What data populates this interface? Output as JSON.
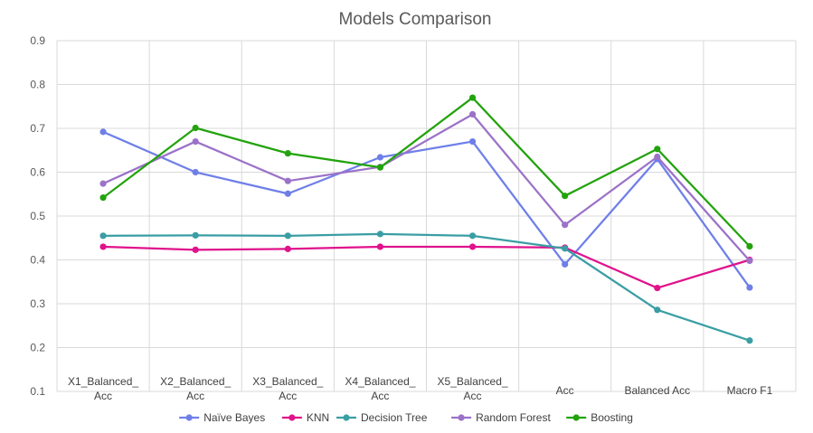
{
  "chart_data": {
    "type": "line",
    "title": "Models Comparison",
    "categories": [
      [
        "X1_Balanced_",
        "Acc"
      ],
      [
        "X2_Balanced_",
        "Acc"
      ],
      [
        "X3_Balanced_",
        "Acc"
      ],
      [
        "X4_Balanced_",
        "Acc"
      ],
      [
        "X5_Balanced_",
        "Acc"
      ],
      [
        "Acc"
      ],
      [
        "Balanced Acc"
      ],
      [
        "Macro F1"
      ]
    ],
    "ylim": [
      0.1,
      0.9
    ],
    "yticks": [
      "0.1",
      "0.2",
      "0.3",
      "0.4",
      "0.5",
      "0.6",
      "0.7",
      "0.8",
      "0.9"
    ],
    "grid": true,
    "legend": "bottom",
    "series": [
      {
        "name": "Naïve Bayes",
        "color": "#6f7fe8",
        "values": [
          0.692,
          0.6,
          0.551,
          0.634,
          0.67,
          0.39,
          0.63,
          0.337
        ]
      },
      {
        "name": "KNN",
        "color": "#e0128c",
        "values": [
          0.43,
          0.423,
          0.425,
          0.43,
          0.43,
          0.428,
          0.336,
          0.4
        ]
      },
      {
        "name": "Decision Tree",
        "color": "#3a9ea4",
        "values": [
          0.455,
          0.456,
          0.455,
          0.459,
          0.455,
          0.426,
          0.286,
          0.216
        ]
      },
      {
        "name": "Random Forest",
        "color": "#9b72c8",
        "values": [
          0.574,
          0.67,
          0.58,
          0.612,
          0.732,
          0.48,
          0.635,
          0.398
        ]
      },
      {
        "name": "Boosting",
        "color": "#22a30d",
        "values": [
          0.542,
          0.701,
          0.643,
          0.611,
          0.77,
          0.546,
          0.653,
          0.431
        ]
      }
    ]
  }
}
